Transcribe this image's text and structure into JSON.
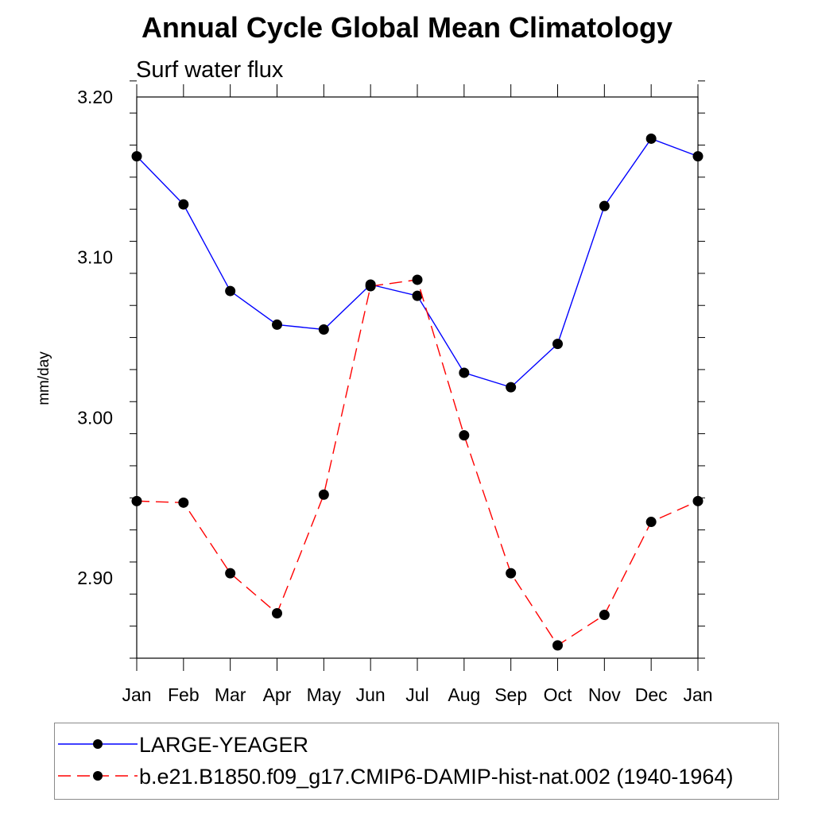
{
  "chart_data": {
    "type": "line",
    "title": "Annual Cycle Global Mean Climatology",
    "subtitle": "Surf water flux",
    "xlabel": "",
    "ylabel": "mm/day",
    "categories": [
      "Jan",
      "Feb",
      "Mar",
      "Apr",
      "May",
      "Jun",
      "Jul",
      "Aug",
      "Sep",
      "Oct",
      "Nov",
      "Dec",
      "Jan"
    ],
    "ylim": [
      2.85,
      3.2
    ],
    "yticks": [
      2.9,
      3.0,
      3.1,
      3.2
    ],
    "ytick_labels": [
      "2.90",
      "3.00",
      "3.10",
      "3.20"
    ],
    "grid": false,
    "legend_position": "bottom",
    "series": [
      {
        "name": "LARGE-YEAGER",
        "color": "#0000ff",
        "dash": "solid",
        "marker": "filled-circle",
        "values": [
          3.163,
          3.133,
          3.079,
          3.058,
          3.055,
          3.083,
          3.076,
          3.028,
          3.019,
          3.046,
          3.132,
          3.174,
          3.163
        ]
      },
      {
        "name": "b.e21.B1850.f09_g17.CMIP6-DAMIP-hist-nat.002 (1940-1964)",
        "color": "#ff0000",
        "dash": "dashed",
        "marker": "filled-circle",
        "values": [
          2.948,
          2.947,
          2.903,
          2.878,
          2.952,
          3.082,
          3.086,
          2.989,
          2.903,
          2.858,
          2.877,
          2.935,
          2.948
        ]
      }
    ]
  }
}
